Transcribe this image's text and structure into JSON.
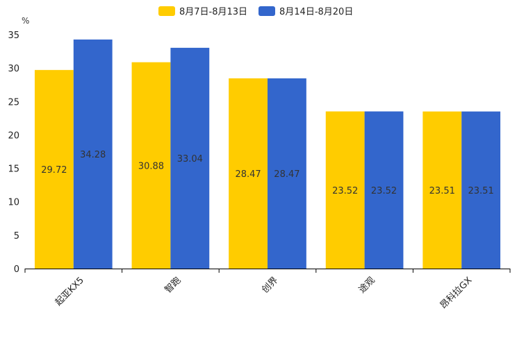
{
  "chart_data": {
    "type": "bar",
    "title": "",
    "xlabel": "",
    "ylabel": "%",
    "ylim": [
      0,
      35
    ],
    "yticks": [
      0,
      5,
      10,
      15,
      20,
      25,
      30,
      35
    ],
    "categories": [
      "起亚KX5",
      "智跑",
      "创界",
      "途观",
      "昂科拉GX"
    ],
    "series": [
      {
        "name": "8月7日-8月13日",
        "color": "#FFCC00",
        "values": [
          29.72,
          30.88,
          28.47,
          23.52,
          23.51
        ]
      },
      {
        "name": "8月14日-8月20日",
        "color": "#3366CC",
        "values": [
          34.28,
          33.04,
          28.47,
          23.52,
          23.51
        ]
      }
    ],
    "legend_position": "top-center",
    "grid": false
  }
}
